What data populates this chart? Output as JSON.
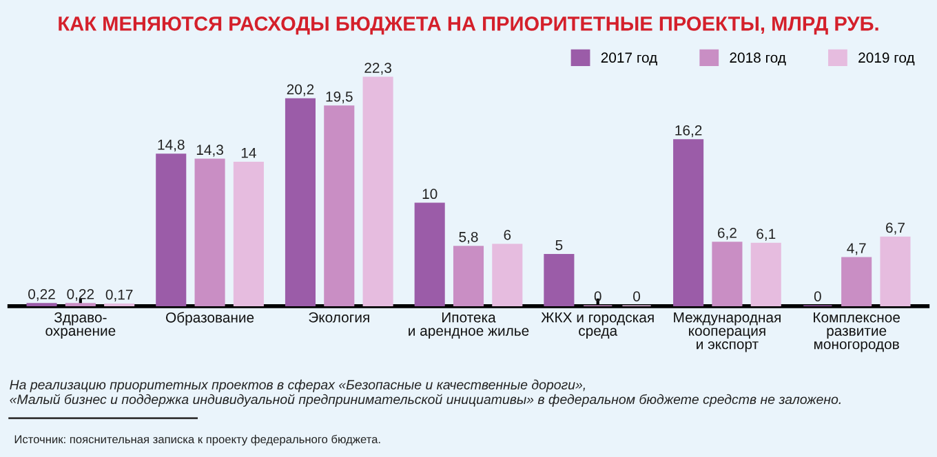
{
  "chart_data": {
    "type": "bar",
    "title": "КАК МЕНЯЮТСЯ РАСХОДЫ БЮДЖЕТА НА ПРИОРИТЕТНЫЕ ПРОЕКТЫ, МЛРД РУБ.",
    "categories": [
      "Здраво-\nохранение",
      "Образование",
      "Экология",
      "Ипотека\nи арендное жилье",
      "ЖКХ и городская\nсреда",
      "Международная\nкооперация\nи экспорт",
      "Комплексное\nразвитие\nмоногородов"
    ],
    "series": [
      {
        "name": "2017 год",
        "color": "#9b5ca8",
        "values": [
          0.22,
          14.8,
          20.2,
          10,
          5,
          16.2,
          0
        ],
        "value_labels": [
          "0,22",
          "14,8",
          "20,2",
          "10",
          "5",
          "16,2",
          "0"
        ]
      },
      {
        "name": "2018 год",
        "color": "#c98ec4",
        "values": [
          0.22,
          14.3,
          19.5,
          5.8,
          0,
          6.2,
          4.7
        ],
        "value_labels": [
          "0,22",
          "14,3",
          "19,5",
          "5,8",
          "0",
          "6,2",
          "4,7"
        ]
      },
      {
        "name": "2019 год",
        "color": "#e6bcdf",
        "values": [
          0.17,
          14,
          22.3,
          6,
          0,
          6.1,
          6.7
        ],
        "value_labels": [
          "0,17",
          "14",
          "22,3",
          "6",
          "0",
          "6,1",
          "6,7"
        ]
      }
    ],
    "legend": "top right",
    "annotations": [
      "На реализацию приоритетных проектов в сферах «Безопасные и качественные дороги»,\n«Малый бизнес и поддержка индивидуальной предпринимательской инициативы» в федеральном бюджете средств не заложено.",
      "Источник: пояснительная записка к проекту федерального бюджета."
    ]
  }
}
